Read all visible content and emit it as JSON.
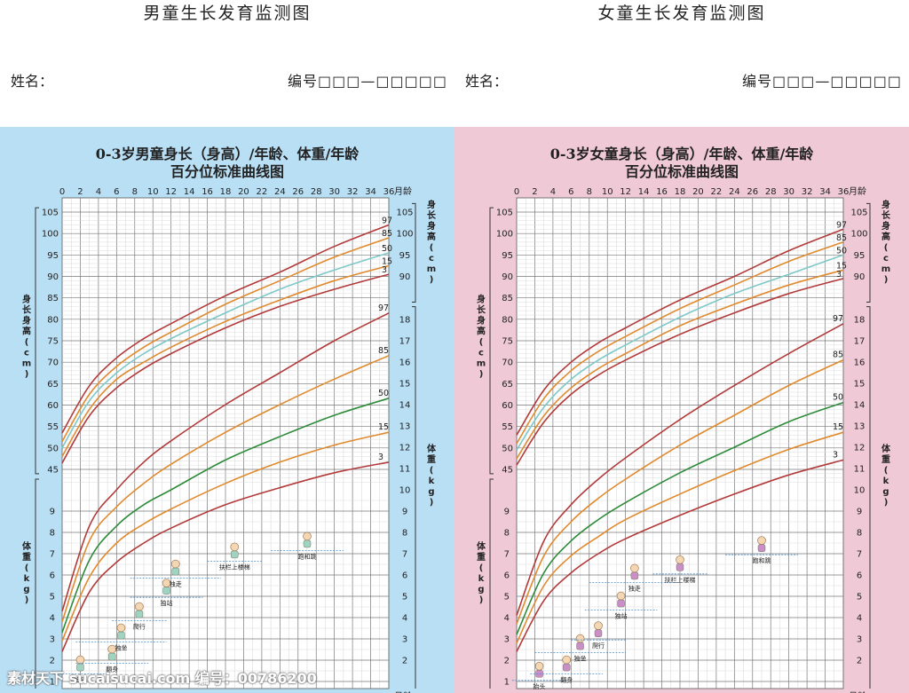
{
  "page": {
    "watermark": "素材天下 sucaisucai.com   编号：00786200"
  },
  "charts": [
    {
      "key": "boy",
      "page_title": "男童生长发育监测图",
      "name_label": "姓名：",
      "code_label": "编号□□□—□□□□□",
      "title_line1": "0-3岁男童身长（身高）/年龄、体重/年龄",
      "title_line2": "百分位标准曲线图",
      "age_axis_label": "月龄",
      "height_axis_label": "身长身高(cm)",
      "weight_axis_label": "体重(kg)",
      "milestones": [
        "抬头",
        "翻身",
        "独坐",
        "爬行",
        "独站",
        "独走",
        "扶栏上楼梯",
        "跑和跳"
      ]
    },
    {
      "key": "girl",
      "page_title": "女童生长发育监测图",
      "name_label": "姓名：",
      "code_label": "编号□□□—□□□□□",
      "title_line1": "0-3岁女童身长（身高）/年龄、体重/年龄",
      "title_line2": "百分位标准曲线图",
      "age_axis_label": "月龄",
      "height_axis_label": "身长身高(cm)",
      "weight_axis_label": "体重(kg)",
      "milestones": [
        "抬头",
        "翻身",
        "独坐",
        "爬行",
        "独站",
        "独走",
        "扶栏上楼梯",
        "跑和跳"
      ]
    }
  ],
  "chart_data": [
    {
      "type": "line",
      "title": "0-3岁男童身长（身高）/年龄、体重/年龄 百分位标准曲线图",
      "x_ticks": [
        0,
        2,
        4,
        6,
        8,
        10,
        12,
        14,
        16,
        18,
        20,
        22,
        24,
        26,
        28,
        30,
        32,
        34,
        36
      ],
      "xlim": [
        0,
        36
      ],
      "height_ticks": [
        45,
        50,
        55,
        60,
        65,
        70,
        75,
        80,
        85,
        90,
        95,
        100,
        105
      ],
      "height_ylim": [
        42,
        107
      ],
      "weight_ticks": [
        1,
        2,
        3,
        4,
        5,
        6,
        7,
        8,
        9,
        10,
        11,
        12,
        13,
        14,
        15,
        16,
        17,
        18
      ],
      "weight_ylim": [
        1,
        19
      ],
      "height_series": [
        {
          "name": "97",
          "color": "#b23a3a",
          "x": [
            0,
            3,
            6,
            9,
            12,
            18,
            24,
            30,
            36
          ],
          "y": [
            53.5,
            64.5,
            71,
            75.5,
            79,
            85.5,
            91,
            97,
            102
          ]
        },
        {
          "name": "85",
          "color": "#e08a2e",
          "x": [
            0,
            3,
            6,
            9,
            12,
            18,
            24,
            30,
            36
          ],
          "y": [
            51.5,
            62.5,
            69,
            73.5,
            77,
            83.5,
            89,
            94.5,
            99
          ]
        },
        {
          "name": "50",
          "color": "#7ec8c8",
          "x": [
            0,
            3,
            6,
            9,
            12,
            18,
            24,
            30,
            36
          ],
          "y": [
            50,
            61,
            67.5,
            72,
            75.5,
            81.5,
            87,
            91.5,
            95.5
          ]
        },
        {
          "name": "15",
          "color": "#e08a2e",
          "x": [
            0,
            3,
            6,
            9,
            12,
            18,
            24,
            30,
            36
          ],
          "y": [
            48,
            59,
            66,
            70,
            73.5,
            79.5,
            84.5,
            89,
            92.5
          ]
        },
        {
          "name": "3",
          "color": "#b23a3a",
          "x": [
            0,
            3,
            6,
            9,
            12,
            18,
            24,
            30,
            36
          ],
          "y": [
            46.5,
            57.5,
            64,
            68.5,
            72,
            78,
            83,
            87,
            90.5
          ]
        }
      ],
      "weight_series": [
        {
          "name": "97",
          "color": "#b23a3a",
          "x": [
            0,
            3,
            6,
            9,
            12,
            18,
            24,
            30,
            36
          ],
          "y": [
            4.3,
            8.3,
            10,
            11.3,
            12.3,
            14,
            15.5,
            17,
            18.3
          ]
        },
        {
          "name": "85",
          "color": "#e08a2e",
          "x": [
            0,
            3,
            6,
            9,
            12,
            18,
            24,
            30,
            36
          ],
          "y": [
            3.8,
            7.6,
            9.2,
            10.3,
            11.2,
            12.7,
            14,
            15.2,
            16.3
          ]
        },
        {
          "name": "50",
          "color": "#2e8b3a",
          "x": [
            0,
            3,
            6,
            9,
            12,
            18,
            24,
            30,
            36
          ],
          "y": [
            3.3,
            6.7,
            8.3,
            9.3,
            10,
            11.4,
            12.5,
            13.5,
            14.3
          ]
        },
        {
          "name": "15",
          "color": "#e08a2e",
          "x": [
            0,
            3,
            6,
            9,
            12,
            18,
            24,
            30,
            36
          ],
          "y": [
            2.9,
            5.9,
            7.5,
            8.4,
            9.1,
            10.3,
            11.3,
            12.1,
            12.7
          ]
        },
        {
          "name": "3",
          "color": "#b23a3a",
          "x": [
            0,
            3,
            6,
            9,
            12,
            18,
            24,
            30,
            36
          ],
          "y": [
            2.4,
            5.2,
            6.6,
            7.5,
            8.2,
            9.3,
            10.1,
            10.8,
            11.3
          ]
        }
      ],
      "milestone_points": [
        {
          "label": "抬头",
          "x": 2,
          "w": 1.6
        },
        {
          "label": "翻身",
          "x": 5.5,
          "w": 2.1
        },
        {
          "label": "独坐",
          "x": 6.5,
          "w": 3.1
        },
        {
          "label": "爬行",
          "x": 8.5,
          "w": 4.1
        },
        {
          "label": "独站",
          "x": 11.5,
          "w": 5.2
        },
        {
          "label": "独走",
          "x": 12.5,
          "w": 6.1
        },
        {
          "label": "扶栏上楼梯",
          "x": 19,
          "w": 6.9
        },
        {
          "label": "跑和跳",
          "x": 27,
          "w": 7.4
        }
      ]
    },
    {
      "type": "line",
      "title": "0-3岁女童身长（身高）/年龄、体重/年龄 百分位标准曲线图",
      "x_ticks": [
        0,
        2,
        4,
        6,
        8,
        10,
        12,
        14,
        16,
        18,
        20,
        22,
        24,
        26,
        28,
        30,
        32,
        34,
        36
      ],
      "xlim": [
        0,
        36
      ],
      "height_ticks": [
        45,
        50,
        55,
        60,
        65,
        70,
        75,
        80,
        85,
        90,
        95,
        100,
        105
      ],
      "height_ylim": [
        42,
        107
      ],
      "weight_ticks": [
        1,
        2,
        3,
        4,
        5,
        6,
        7,
        8,
        9,
        10,
        11,
        12,
        13,
        14,
        15,
        16,
        17,
        18
      ],
      "weight_ylim": [
        1,
        19
      ],
      "height_series": [
        {
          "name": "97",
          "color": "#b23a3a",
          "x": [
            0,
            3,
            6,
            9,
            12,
            18,
            24,
            30,
            36
          ],
          "y": [
            53,
            63.5,
            70,
            74.5,
            78,
            84.5,
            90,
            96,
            101
          ]
        },
        {
          "name": "85",
          "color": "#e08a2e",
          "x": [
            0,
            3,
            6,
            9,
            12,
            18,
            24,
            30,
            36
          ],
          "y": [
            51,
            61.5,
            68,
            72.5,
            76,
            82.5,
            88,
            93.5,
            98
          ]
        },
        {
          "name": "50",
          "color": "#7ec8c8",
          "x": [
            0,
            3,
            6,
            9,
            12,
            18,
            24,
            30,
            36
          ],
          "y": [
            49.5,
            59.5,
            66,
            70.5,
            74,
            80.5,
            86,
            90.5,
            95
          ]
        },
        {
          "name": "15",
          "color": "#e08a2e",
          "x": [
            0,
            3,
            6,
            9,
            12,
            18,
            24,
            30,
            36
          ],
          "y": [
            47.5,
            57.5,
            64,
            68.5,
            72,
            78.5,
            83.5,
            88,
            91.5
          ]
        },
        {
          "name": "3",
          "color": "#b23a3a",
          "x": [
            0,
            3,
            6,
            9,
            12,
            18,
            24,
            30,
            36
          ],
          "y": [
            46,
            56,
            62.5,
            67,
            70.5,
            76.5,
            81.5,
            86,
            89.5
          ]
        }
      ],
      "weight_series": [
        {
          "name": "97",
          "color": "#b23a3a",
          "x": [
            0,
            3,
            6,
            9,
            12,
            18,
            24,
            30,
            36
          ],
          "y": [
            4.1,
            7.6,
            9.3,
            10.5,
            11.5,
            13.3,
            14.9,
            16.4,
            17.8
          ]
        },
        {
          "name": "85",
          "color": "#e08a2e",
          "x": [
            0,
            3,
            6,
            9,
            12,
            18,
            24,
            30,
            36
          ],
          "y": [
            3.7,
            6.9,
            8.5,
            9.6,
            10.5,
            12.1,
            13.5,
            14.9,
            16.1
          ]
        },
        {
          "name": "50",
          "color": "#2e8b3a",
          "x": [
            0,
            3,
            6,
            9,
            12,
            18,
            24,
            30,
            36
          ],
          "y": [
            3.2,
            6.1,
            7.6,
            8.6,
            9.4,
            10.8,
            12,
            13.2,
            14.1
          ]
        },
        {
          "name": "15",
          "color": "#e08a2e",
          "x": [
            0,
            3,
            6,
            9,
            12,
            18,
            24,
            30,
            36
          ],
          "y": [
            2.8,
            5.5,
            6.9,
            7.8,
            8.6,
            9.8,
            10.9,
            11.9,
            12.7
          ]
        },
        {
          "name": "3",
          "color": "#b23a3a",
          "x": [
            0,
            3,
            6,
            9,
            12,
            18,
            24,
            30,
            36
          ],
          "y": [
            2.4,
            4.8,
            6.1,
            7,
            7.7,
            8.8,
            9.8,
            10.7,
            11.4
          ]
        }
      ],
      "milestone_points": [
        {
          "label": "抬头",
          "x": 2.5,
          "w": 1.3
        },
        {
          "label": "翻身",
          "x": 5.5,
          "w": 1.6
        },
        {
          "label": "独坐",
          "x": 7,
          "w": 2.6
        },
        {
          "label": "爬行",
          "x": 9,
          "w": 3.2
        },
        {
          "label": "独站",
          "x": 11.5,
          "w": 4.6
        },
        {
          "label": "独走",
          "x": 13,
          "w": 5.9
        },
        {
          "label": "扶栏上楼梯",
          "x": 18,
          "w": 6.3
        },
        {
          "label": "跑和跳",
          "x": 27,
          "w": 7.2
        }
      ]
    }
  ]
}
